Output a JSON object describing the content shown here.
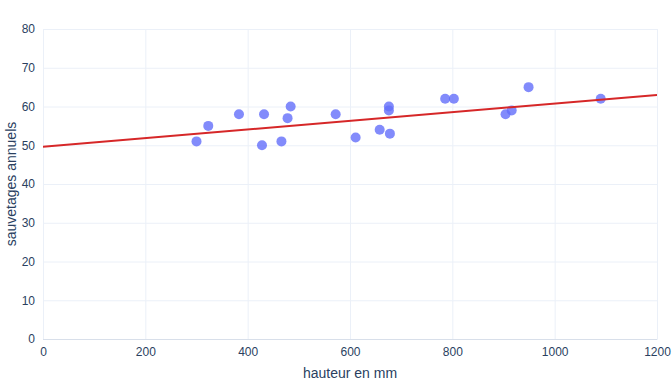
{
  "chart_data": {
    "type": "scatter",
    "x_label": "hauteur en mm",
    "y_label": "sauvetages annuels",
    "series": [
      {
        "type": "scatter",
        "marker": "circle",
        "color": "#636efa",
        "x": [
          300,
          323,
          383,
          428,
          432,
          466,
          478,
          484,
          572,
          611,
          658,
          676,
          676,
          678,
          786,
          803,
          904,
          916,
          949,
          1090
        ],
        "values": [
          51,
          55,
          58,
          50,
          58,
          51,
          57,
          60,
          58,
          52,
          54,
          60,
          59,
          53,
          62,
          62,
          58,
          59,
          65,
          62
        ]
      },
      {
        "type": "line",
        "line_style": "solid",
        "color": "#d62728",
        "x": [
          0,
          1200
        ],
        "values": [
          49.6,
          63
        ]
      }
    ],
    "xlim": [
      0,
      1200
    ],
    "xticks": [
      0,
      200,
      400,
      600,
      800,
      1000,
      1200
    ],
    "ylim": [
      0,
      80
    ],
    "yticks": [
      0,
      10,
      20,
      30,
      40,
      50,
      60,
      70,
      80
    ],
    "grid": true
  }
}
